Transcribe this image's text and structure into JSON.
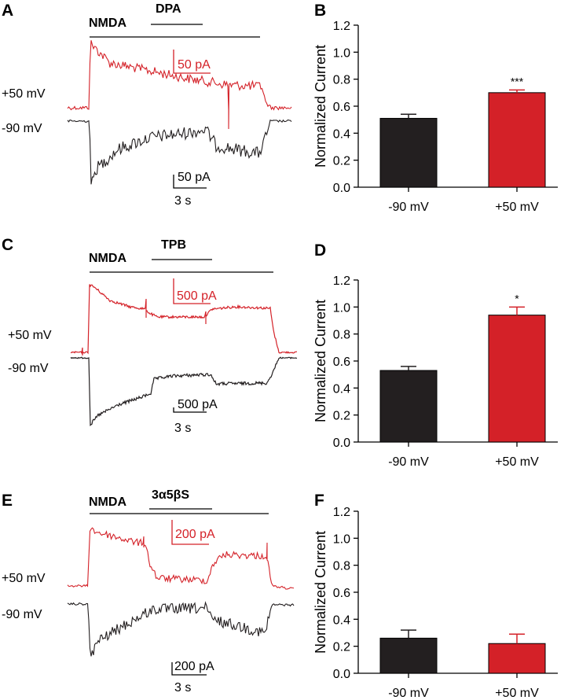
{
  "colors": {
    "red": "#d42128",
    "black": "#231f20"
  },
  "trace_panels": [
    {
      "panel_label": "A",
      "agonist": "NMDA",
      "drug": "DPA",
      "voltage_pos": "+50 mV",
      "voltage_neg": "-90 mV",
      "scale_red": "50 pA",
      "scale_black": "50 pA",
      "scale_time": "3 s"
    },
    {
      "panel_label": "C",
      "agonist": "NMDA",
      "drug": "TPB",
      "voltage_pos": "+50 mV",
      "voltage_neg": "-90 mV",
      "scale_red": "500 pA",
      "scale_black": "500 pA",
      "scale_time": "3 s"
    },
    {
      "panel_label": "E",
      "agonist": "NMDA",
      "drug": "3α5βS",
      "voltage_pos": "+50 mV",
      "voltage_neg": "-90 mV",
      "scale_red": "200 pA",
      "scale_black": "200 pA",
      "scale_time": "3 s"
    }
  ],
  "chart_data": [
    {
      "type": "bar",
      "panel_label": "B",
      "categories": [
        "-90 mV",
        "+50 mV"
      ],
      "values": [
        0.51,
        0.7
      ],
      "errors": [
        0.03,
        0.02
      ],
      "significance": [
        "",
        "***"
      ],
      "ylabel": "Normalized Current",
      "ylim": [
        0.0,
        1.2
      ],
      "yticks": [
        "0.0",
        "0.2",
        "0.4",
        "0.6",
        "0.8",
        "1.0",
        "1.2"
      ]
    },
    {
      "type": "bar",
      "panel_label": "D",
      "categories": [
        "-90 mV",
        "+50 mV"
      ],
      "values": [
        0.53,
        0.94
      ],
      "errors": [
        0.03,
        0.06
      ],
      "significance": [
        "",
        "*"
      ],
      "ylabel": "Normalized Current",
      "ylim": [
        0.0,
        1.2
      ],
      "yticks": [
        "0.0",
        "0.2",
        "0.4",
        "0.6",
        "0.8",
        "1.0",
        "1.2"
      ]
    },
    {
      "type": "bar",
      "panel_label": "F",
      "categories": [
        "-90 mV",
        "+50 mV"
      ],
      "values": [
        0.26,
        0.22
      ],
      "errors": [
        0.06,
        0.07
      ],
      "significance": [
        "",
        ""
      ],
      "ylabel": "Normalized Current",
      "ylim": [
        0.0,
        1.2
      ],
      "yticks": [
        "0.0",
        "0.2",
        "0.4",
        "0.6",
        "0.8",
        "1.0",
        "1.2"
      ]
    }
  ]
}
